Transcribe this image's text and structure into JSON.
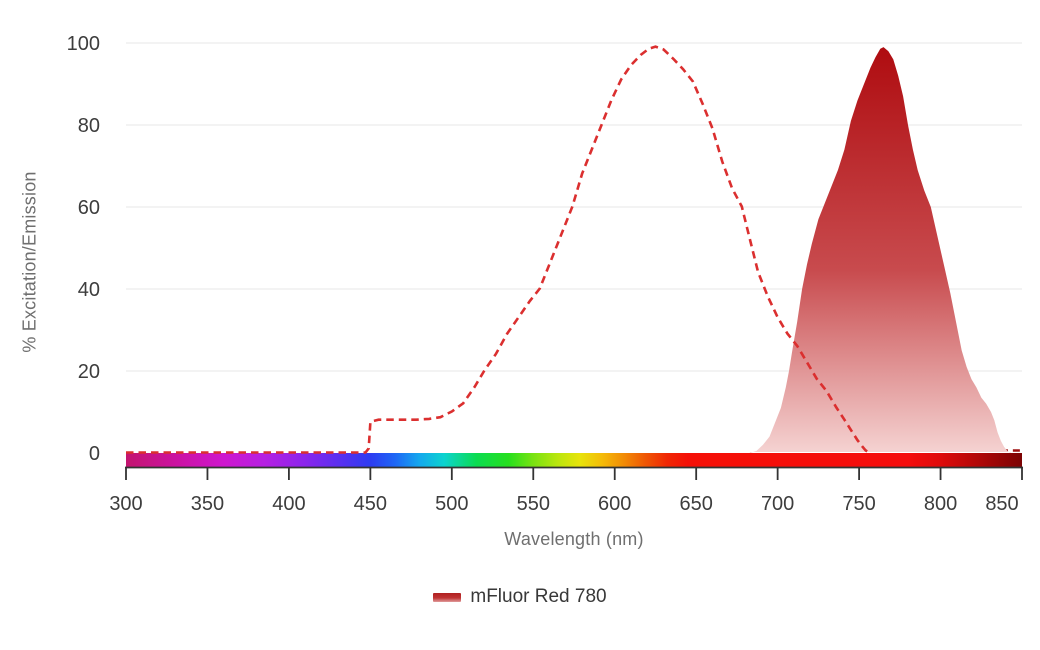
{
  "chart_data": {
    "type": "area",
    "title": "",
    "xlabel": "Wavelength (nm)",
    "ylabel": "% Excitation/Emission",
    "xlim": [
      300,
      850
    ],
    "ylim": [
      0,
      100
    ],
    "x_ticks": [
      300,
      350,
      400,
      450,
      500,
      550,
      600,
      650,
      700,
      750,
      800,
      850
    ],
    "y_ticks": [
      0,
      20,
      40,
      60,
      80,
      100
    ],
    "grid": "horizontal-only",
    "background": "#ffffff",
    "legend_position": "bottom-center",
    "series": [
      {
        "name": "mFluor Red 780 excitation",
        "type": "line",
        "style": "dashed",
        "color": "#db2f2f",
        "peak_nm": 625,
        "peak_pct": 99,
        "points": [
          [
            300,
            0
          ],
          [
            340,
            0
          ],
          [
            380,
            0
          ],
          [
            420,
            0
          ],
          [
            447,
            0
          ],
          [
            449,
            1
          ],
          [
            450,
            7.5
          ],
          [
            455,
            8
          ],
          [
            462,
            8
          ],
          [
            470,
            8
          ],
          [
            478,
            8
          ],
          [
            486,
            8.2
          ],
          [
            493,
            8.6
          ],
          [
            500,
            10
          ],
          [
            507,
            12
          ],
          [
            514,
            16
          ],
          [
            520,
            20
          ],
          [
            527,
            24
          ],
          [
            534,
            29
          ],
          [
            541,
            33
          ],
          [
            548,
            37
          ],
          [
            554,
            40
          ],
          [
            560,
            46
          ],
          [
            567,
            53
          ],
          [
            574,
            60
          ],
          [
            580,
            68
          ],
          [
            586,
            74
          ],
          [
            592,
            80
          ],
          [
            598,
            86
          ],
          [
            604,
            91
          ],
          [
            610,
            94.5
          ],
          [
            616,
            97
          ],
          [
            621,
            98.5
          ],
          [
            625,
            99
          ],
          [
            630,
            98.3
          ],
          [
            636,
            96
          ],
          [
            642,
            93.5
          ],
          [
            648,
            90.5
          ],
          [
            654,
            85
          ],
          [
            660,
            79
          ],
          [
            666,
            71
          ],
          [
            672,
            64.5
          ],
          [
            678,
            60
          ],
          [
            683,
            52
          ],
          [
            688,
            44
          ],
          [
            694,
            38
          ],
          [
            700,
            33
          ],
          [
            706,
            29
          ],
          [
            712,
            26
          ],
          [
            718,
            22
          ],
          [
            724,
            18
          ],
          [
            730,
            15
          ],
          [
            736,
            11
          ],
          [
            741,
            8
          ],
          [
            745,
            5.5
          ],
          [
            749,
            3
          ],
          [
            752,
            1.5
          ],
          [
            754,
            0.5
          ],
          [
            756,
            0
          ]
        ]
      },
      {
        "name": "mFluor Red 780 emission",
        "type": "area",
        "style": "filled-gradient",
        "gradient_top": "#af0c10",
        "gradient_bottom": "#f5d3d2",
        "peak_nm": 765,
        "peak_pct": 99,
        "points": [
          [
            683,
            0
          ],
          [
            687,
            0.5
          ],
          [
            691,
            2
          ],
          [
            695,
            4
          ],
          [
            699,
            8
          ],
          [
            702,
            11
          ],
          [
            705,
            16
          ],
          [
            707,
            20
          ],
          [
            709,
            25
          ],
          [
            712,
            32
          ],
          [
            715,
            40
          ],
          [
            718,
            46
          ],
          [
            721,
            51
          ],
          [
            725,
            57
          ],
          [
            729,
            61
          ],
          [
            733,
            65
          ],
          [
            737,
            69
          ],
          [
            741,
            74
          ],
          [
            745,
            81
          ],
          [
            749,
            86
          ],
          [
            753,
            90
          ],
          [
            757,
            94
          ],
          [
            760,
            96.5
          ],
          [
            763,
            98.6
          ],
          [
            765,
            99
          ],
          [
            768,
            98
          ],
          [
            771,
            96
          ],
          [
            774,
            92
          ],
          [
            777,
            87
          ],
          [
            780,
            80
          ],
          [
            783,
            74
          ],
          [
            786,
            69
          ],
          [
            790,
            64
          ],
          [
            794,
            60
          ],
          [
            798,
            53
          ],
          [
            802,
            46
          ],
          [
            806,
            39
          ],
          [
            810,
            31
          ],
          [
            813,
            25
          ],
          [
            816,
            21
          ],
          [
            819,
            18
          ],
          [
            822,
            16
          ],
          [
            825,
            13.5
          ],
          [
            828,
            12
          ],
          [
            831,
            10
          ],
          [
            833,
            8
          ],
          [
            835,
            5
          ],
          [
            837,
            3
          ],
          [
            839,
            1.5
          ],
          [
            841,
            0.5
          ],
          [
            843,
            0
          ]
        ]
      }
    ],
    "zero_baseline": {
      "comment": "dark red dashed zero line continuing right of excitation curve end",
      "from_nm": 756,
      "to_nm": 850,
      "color": "#9e1111"
    },
    "spectrum_bar": {
      "from_nm": 300,
      "to_nm": 850,
      "stops": [
        {
          "offset": 0.0,
          "color": "#c3156f"
        },
        {
          "offset": 0.055,
          "color": "#cb12a0"
        },
        {
          "offset": 0.109,
          "color": "#ce17ce"
        },
        {
          "offset": 0.155,
          "color": "#b520e2"
        },
        {
          "offset": 0.2,
          "color": "#8a25ec"
        },
        {
          "offset": 0.245,
          "color": "#5132f0"
        },
        {
          "offset": 0.273,
          "color": "#2d3cf2"
        },
        {
          "offset": 0.3,
          "color": "#1e66f5"
        },
        {
          "offset": 0.327,
          "color": "#14a7ee"
        },
        {
          "offset": 0.355,
          "color": "#0cd3cf"
        },
        {
          "offset": 0.391,
          "color": "#0bdc51"
        },
        {
          "offset": 0.427,
          "color": "#27df1e"
        },
        {
          "offset": 0.455,
          "color": "#7be312"
        },
        {
          "offset": 0.482,
          "color": "#bbe60e"
        },
        {
          "offset": 0.506,
          "color": "#e7e40b"
        },
        {
          "offset": 0.531,
          "color": "#f4bc08"
        },
        {
          "offset": 0.555,
          "color": "#f28d06"
        },
        {
          "offset": 0.578,
          "color": "#ef5a04"
        },
        {
          "offset": 0.604,
          "color": "#f02704"
        },
        {
          "offset": 0.627,
          "color": "#f51007"
        },
        {
          "offset": 0.873,
          "color": "#f50d0d"
        },
        {
          "offset": 0.909,
          "color": "#de0b0b"
        },
        {
          "offset": 0.945,
          "color": "#b80808"
        },
        {
          "offset": 0.978,
          "color": "#930505"
        },
        {
          "offset": 1.0,
          "color": "#7c0304"
        }
      ]
    },
    "style_colors": {
      "grid": "#ececec",
      "axis": "#333333",
      "tick_label": "#3d3d3d",
      "axis_title": "#6f6f6f"
    }
  },
  "legend": {
    "label": "mFluor Red 780"
  },
  "axes": {
    "x_title": "Wavelength (nm)",
    "y_title": "% Excitation/Emission"
  }
}
